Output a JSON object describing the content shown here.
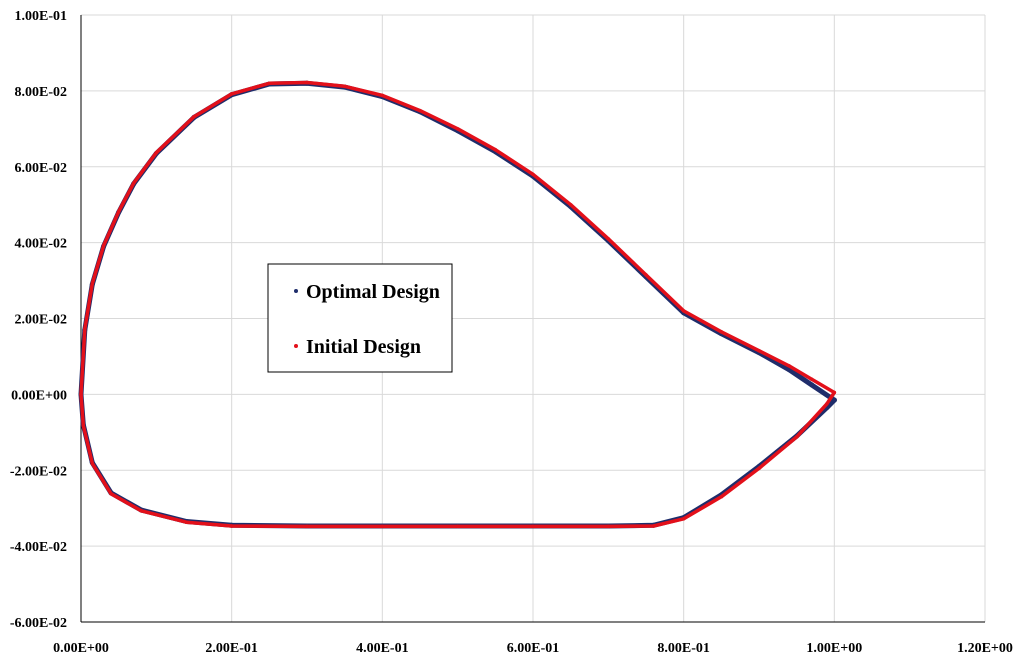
{
  "chart_data": {
    "type": "scatter",
    "title": "",
    "xlabel": "",
    "ylabel": "",
    "xlim": [
      0,
      1.2
    ],
    "ylim": [
      -0.06,
      0.1
    ],
    "grid": true,
    "legend_placement": "center-left",
    "x_ticks": [
      "0.00E+00",
      "2.00E-01",
      "4.00E-01",
      "6.00E-01",
      "8.00E-01",
      "1.00E+00",
      "1.20E+00"
    ],
    "y_ticks": [
      "1.00E-01",
      "8.00E-02",
      "6.00E-02",
      "4.00E-02",
      "2.00E-02",
      "0.00E+00",
      "-2.00E-02",
      "-4.00E-02",
      "-6.00E-02"
    ],
    "series": [
      {
        "name": "Optimal Design",
        "color": "#1f2d6b",
        "points": [
          [
            1.0,
            -0.0015
          ],
          [
            0.97,
            0.0025
          ],
          [
            0.94,
            0.0065
          ],
          [
            0.9,
            0.011
          ],
          [
            0.85,
            0.016
          ],
          [
            0.8,
            0.0215
          ],
          [
            0.75,
            0.031
          ],
          [
            0.7,
            0.0405
          ],
          [
            0.65,
            0.0495
          ],
          [
            0.6,
            0.0575
          ],
          [
            0.55,
            0.064
          ],
          [
            0.5,
            0.0695
          ],
          [
            0.45,
            0.0745
          ],
          [
            0.4,
            0.0785
          ],
          [
            0.35,
            0.081
          ],
          [
            0.3,
            0.082
          ],
          [
            0.25,
            0.0818
          ],
          [
            0.2,
            0.079
          ],
          [
            0.15,
            0.073
          ],
          [
            0.1,
            0.0635
          ],
          [
            0.07,
            0.0555
          ],
          [
            0.05,
            0.048
          ],
          [
            0.03,
            0.039
          ],
          [
            0.015,
            0.029
          ],
          [
            0.005,
            0.017
          ],
          [
            0.0,
            0.0
          ],
          [
            0.003,
            -0.008
          ],
          [
            0.015,
            -0.018
          ],
          [
            0.04,
            -0.026
          ],
          [
            0.08,
            -0.0305
          ],
          [
            0.14,
            -0.0335
          ],
          [
            0.2,
            -0.0345
          ],
          [
            0.3,
            -0.0347
          ],
          [
            0.4,
            -0.0347
          ],
          [
            0.5,
            -0.0347
          ],
          [
            0.6,
            -0.0347
          ],
          [
            0.7,
            -0.0347
          ],
          [
            0.76,
            -0.0345
          ],
          [
            0.8,
            -0.0325
          ],
          [
            0.85,
            -0.0265
          ],
          [
            0.9,
            -0.019
          ],
          [
            0.95,
            -0.011
          ],
          [
            0.99,
            -0.0035
          ],
          [
            1.0,
            -0.0015
          ]
        ]
      },
      {
        "name": "Initial Design",
        "color": "#e3101a",
        "points": [
          [
            1.0,
            0.0005
          ],
          [
            0.97,
            0.004
          ],
          [
            0.94,
            0.0075
          ],
          [
            0.9,
            0.0115
          ],
          [
            0.85,
            0.0165
          ],
          [
            0.8,
            0.022
          ],
          [
            0.75,
            0.0315
          ],
          [
            0.7,
            0.041
          ],
          [
            0.65,
            0.05
          ],
          [
            0.6,
            0.058
          ],
          [
            0.55,
            0.0645
          ],
          [
            0.5,
            0.07
          ],
          [
            0.45,
            0.0748
          ],
          [
            0.4,
            0.0788
          ],
          [
            0.35,
            0.0812
          ],
          [
            0.3,
            0.0822
          ],
          [
            0.25,
            0.082
          ],
          [
            0.2,
            0.0792
          ],
          [
            0.15,
            0.0732
          ],
          [
            0.1,
            0.0637
          ],
          [
            0.07,
            0.0557
          ],
          [
            0.05,
            0.0482
          ],
          [
            0.03,
            0.0392
          ],
          [
            0.015,
            0.0292
          ],
          [
            0.005,
            0.0172
          ],
          [
            0.0,
            0.0
          ],
          [
            0.003,
            -0.0082
          ],
          [
            0.015,
            -0.0182
          ],
          [
            0.04,
            -0.0262
          ],
          [
            0.08,
            -0.0307
          ],
          [
            0.14,
            -0.0337
          ],
          [
            0.2,
            -0.0347
          ],
          [
            0.3,
            -0.0348
          ],
          [
            0.4,
            -0.0348
          ],
          [
            0.5,
            -0.0348
          ],
          [
            0.6,
            -0.0348
          ],
          [
            0.7,
            -0.0348
          ],
          [
            0.76,
            -0.0347
          ],
          [
            0.8,
            -0.0328
          ],
          [
            0.85,
            -0.027
          ],
          [
            0.9,
            -0.0195
          ],
          [
            0.95,
            -0.0112
          ],
          [
            0.99,
            -0.0025
          ],
          [
            1.0,
            0.0005
          ]
        ]
      }
    ]
  }
}
